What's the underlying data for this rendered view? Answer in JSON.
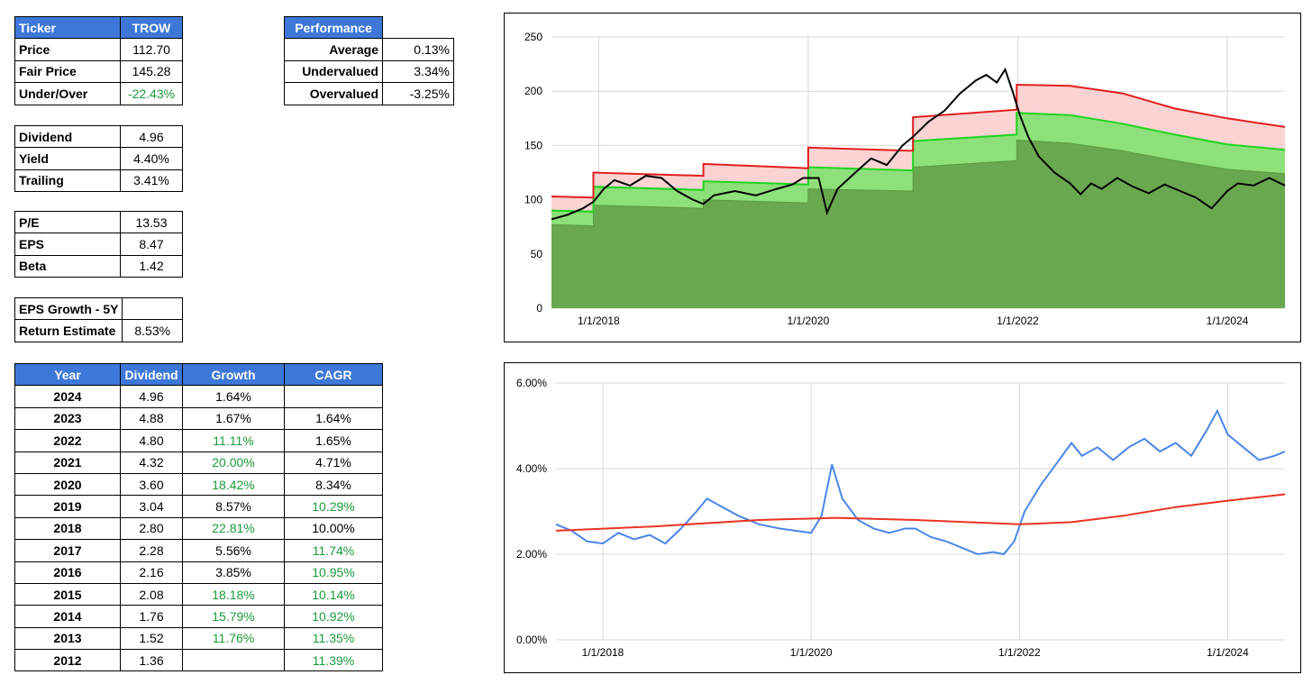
{
  "ticker_table": {
    "rows": [
      {
        "label": "Ticker",
        "value": "TROW"
      },
      {
        "label": "Price",
        "value": "112.70"
      },
      {
        "label": "Fair Price",
        "value": "145.28"
      },
      {
        "label": "Under/Over",
        "value": "-22.43%"
      }
    ]
  },
  "dividend_table": {
    "rows": [
      {
        "label": "Dividend",
        "value": "4.96"
      },
      {
        "label": "Yield",
        "value": "4.40%"
      },
      {
        "label": "Trailing",
        "value": "3.41%"
      }
    ]
  },
  "valuation_table": {
    "rows": [
      {
        "label": "P/E",
        "value": "13.53"
      },
      {
        "label": "EPS",
        "value": "8.47"
      },
      {
        "label": "Beta",
        "value": "1.42"
      }
    ]
  },
  "growth_table": {
    "rows": [
      {
        "label": "EPS Growth - 5Y",
        "value": ""
      },
      {
        "label": "Return Estimate",
        "value": "8.53%"
      }
    ]
  },
  "performance_table": {
    "header": "Performance",
    "rows": [
      {
        "label": "Average",
        "value": "0.13%"
      },
      {
        "label": "Undervalued",
        "value": "3.34%"
      },
      {
        "label": "Overvalued",
        "value": "-3.25%"
      }
    ]
  },
  "history_table": {
    "headers": [
      "Year",
      "Dividend",
      "Growth",
      "CAGR"
    ],
    "rows": [
      {
        "year": "2024",
        "dividend": "4.96",
        "growth": "1.64%",
        "cagr": ""
      },
      {
        "year": "2023",
        "dividend": "4.88",
        "growth": "1.67%",
        "cagr": "1.64%"
      },
      {
        "year": "2022",
        "dividend": "4.80",
        "growth": "11.11%",
        "cagr": "1.65%"
      },
      {
        "year": "2021",
        "dividend": "4.32",
        "growth": "20.00%",
        "cagr": "4.71%"
      },
      {
        "year": "2020",
        "dividend": "3.60",
        "growth": "18.42%",
        "cagr": "8.34%"
      },
      {
        "year": "2019",
        "dividend": "3.04",
        "growth": "8.57%",
        "cagr": "10.29%"
      },
      {
        "year": "2018",
        "dividend": "2.80",
        "growth": "22.81%",
        "cagr": "10.00%"
      },
      {
        "year": "2017",
        "dividend": "2.28",
        "growth": "5.56%",
        "cagr": "11.74%"
      },
      {
        "year": "2016",
        "dividend": "2.16",
        "growth": "3.85%",
        "cagr": "10.95%"
      },
      {
        "year": "2015",
        "dividend": "2.08",
        "growth": "18.18%",
        "cagr": "10.14%"
      },
      {
        "year": "2014",
        "dividend": "1.76",
        "growth": "15.79%",
        "cagr": "10.92%"
      },
      {
        "year": "2013",
        "dividend": "1.52",
        "growth": "11.76%",
        "cagr": "11.35%"
      },
      {
        "year": "2012",
        "dividend": "1.36",
        "growth": "",
        "cagr": "11.39%"
      }
    ]
  },
  "chart_data": [
    {
      "type": "area",
      "x_ticks": [
        "1/1/2018",
        "1/1/2020",
        "1/1/2022",
        "1/1/2024"
      ],
      "x_range": [
        "2017-07",
        "2024-07"
      ],
      "ylim": [
        0,
        250
      ],
      "y_ticks": [
        "0",
        "50",
        "100",
        "150",
        "200",
        "250"
      ],
      "grid": true,
      "series": [
        {
          "values": [
            [
              2017.55,
              103
            ],
            [
              2017.95,
              102
            ],
            [
              2017.95,
              125
            ],
            [
              2019.0,
              122
            ],
            [
              2019.0,
              133
            ],
            [
              2020.0,
              129
            ],
            [
              2020.0,
              148
            ],
            [
              2021.0,
              145
            ],
            [
              2021.0,
              176
            ],
            [
              2021.99,
              183
            ],
            [
              2021.99,
              206
            ],
            [
              2022.5,
              205
            ],
            [
              2023.0,
              198
            ],
            [
              2023.5,
              184
            ],
            [
              2024.0,
              175
            ],
            [
              2024.55,
              167
            ]
          ]
        },
        {
          "values": [
            [
              2017.55,
              90
            ],
            [
              2017.95,
              89
            ],
            [
              2017.95,
              112
            ],
            [
              2019.0,
              109
            ],
            [
              2019.0,
              117
            ],
            [
              2020.0,
              114
            ],
            [
              2020.0,
              130
            ],
            [
              2021.0,
              127
            ],
            [
              2021.0,
              154
            ],
            [
              2021.99,
              160
            ],
            [
              2021.99,
              180
            ],
            [
              2022.5,
              178
            ],
            [
              2023.0,
              170
            ],
            [
              2023.5,
              160
            ],
            [
              2024.0,
              151
            ],
            [
              2024.55,
              146
            ]
          ]
        },
        {
          "values": [
            [
              2017.55,
              77
            ],
            [
              2017.95,
              76
            ],
            [
              2017.95,
              95
            ],
            [
              2019.0,
              92
            ],
            [
              2019.0,
              100
            ],
            [
              2020.0,
              97
            ],
            [
              2020.0,
              110
            ],
            [
              2021.0,
              108
            ],
            [
              2021.0,
              130
            ],
            [
              2021.99,
              136
            ],
            [
              2021.99,
              155
            ],
            [
              2022.5,
              152
            ],
            [
              2023.0,
              145
            ],
            [
              2023.5,
              136
            ],
            [
              2024.0,
              128
            ],
            [
              2024.55,
              124
            ]
          ]
        },
        {
          "values": [
            [
              2017.55,
              82
            ],
            [
              2017.7,
              86
            ],
            [
              2017.85,
              92
            ],
            [
              2017.95,
              98
            ],
            [
              2018.05,
              110
            ],
            [
              2018.15,
              118
            ],
            [
              2018.3,
              113
            ],
            [
              2018.45,
              122
            ],
            [
              2018.6,
              120
            ],
            [
              2018.75,
              108
            ],
            [
              2018.9,
              100
            ],
            [
              2019.0,
              96
            ],
            [
              2019.1,
              104
            ],
            [
              2019.3,
              108
            ],
            [
              2019.5,
              104
            ],
            [
              2019.7,
              110
            ],
            [
              2019.85,
              114
            ],
            [
              2019.95,
              120
            ],
            [
              2020.1,
              120
            ],
            [
              2020.18,
              88
            ],
            [
              2020.28,
              110
            ],
            [
              2020.45,
              125
            ],
            [
              2020.6,
              138
            ],
            [
              2020.75,
              132
            ],
            [
              2020.9,
              150
            ],
            [
              2021.0,
              158
            ],
            [
              2021.15,
              172
            ],
            [
              2021.3,
              182
            ],
            [
              2021.45,
              198
            ],
            [
              2021.6,
              210
            ],
            [
              2021.7,
              215
            ],
            [
              2021.8,
              208
            ],
            [
              2021.88,
              220
            ],
            [
              2021.95,
              200
            ],
            [
              2022.02,
              178
            ],
            [
              2022.1,
              158
            ],
            [
              2022.2,
              140
            ],
            [
              2022.35,
              125
            ],
            [
              2022.5,
              115
            ],
            [
              2022.6,
              105
            ],
            [
              2022.7,
              115
            ],
            [
              2022.8,
              110
            ],
            [
              2022.95,
              120
            ],
            [
              2023.1,
              112
            ],
            [
              2023.25,
              106
            ],
            [
              2023.4,
              114
            ],
            [
              2023.55,
              108
            ],
            [
              2023.7,
              102
            ],
            [
              2023.85,
              92
            ],
            [
              2024.0,
              108
            ],
            [
              2024.1,
              115
            ],
            [
              2024.25,
              113
            ],
            [
              2024.4,
              120
            ],
            [
              2024.55,
              113
            ]
          ]
        }
      ]
    },
    {
      "type": "line",
      "x_ticks": [
        "1/1/2018",
        "1/1/2020",
        "1/1/2022",
        "1/1/2024"
      ],
      "x_range": [
        "2017-07",
        "2024-07"
      ],
      "ylim": [
        0,
        6
      ],
      "y_ticks": [
        "0.00%",
        "2.00%",
        "4.00%",
        "6.00%"
      ],
      "grid": true,
      "series": [
        {
          "color": "#4a86e8",
          "values": [
            [
              2017.55,
              2.7
            ],
            [
              2017.7,
              2.55
            ],
            [
              2017.85,
              2.3
            ],
            [
              2018.0,
              2.25
            ],
            [
              2018.15,
              2.5
            ],
            [
              2018.3,
              2.35
            ],
            [
              2018.45,
              2.45
            ],
            [
              2018.6,
              2.25
            ],
            [
              2018.75,
              2.6
            ],
            [
              2018.9,
              3.0
            ],
            [
              2019.0,
              3.3
            ],
            [
              2019.15,
              3.1
            ],
            [
              2019.3,
              2.9
            ],
            [
              2019.5,
              2.7
            ],
            [
              2019.7,
              2.6
            ],
            [
              2019.85,
              2.55
            ],
            [
              2020.0,
              2.5
            ],
            [
              2020.1,
              2.9
            ],
            [
              2020.2,
              4.1
            ],
            [
              2020.3,
              3.3
            ],
            [
              2020.45,
              2.8
            ],
            [
              2020.6,
              2.6
            ],
            [
              2020.75,
              2.5
            ],
            [
              2020.9,
              2.6
            ],
            [
              2021.0,
              2.6
            ],
            [
              2021.15,
              2.4
            ],
            [
              2021.3,
              2.3
            ],
            [
              2021.45,
              2.15
            ],
            [
              2021.6,
              2.0
            ],
            [
              2021.75,
              2.05
            ],
            [
              2021.85,
              2.0
            ],
            [
              2021.95,
              2.3
            ],
            [
              2022.05,
              3.0
            ],
            [
              2022.2,
              3.6
            ],
            [
              2022.35,
              4.1
            ],
            [
              2022.5,
              4.6
            ],
            [
              2022.6,
              4.3
            ],
            [
              2022.75,
              4.5
            ],
            [
              2022.9,
              4.2
            ],
            [
              2023.05,
              4.5
            ],
            [
              2023.2,
              4.7
            ],
            [
              2023.35,
              4.4
            ],
            [
              2023.5,
              4.6
            ],
            [
              2023.65,
              4.3
            ],
            [
              2023.8,
              4.9
            ],
            [
              2023.9,
              5.35
            ],
            [
              2024.0,
              4.8
            ],
            [
              2024.15,
              4.5
            ],
            [
              2024.3,
              4.2
            ],
            [
              2024.45,
              4.3
            ],
            [
              2024.55,
              4.4
            ]
          ]
        },
        {
          "color": "#ea3323",
          "values": [
            [
              2017.55,
              2.55
            ],
            [
              2018.5,
              2.65
            ],
            [
              2019.5,
              2.8
            ],
            [
              2020.25,
              2.85
            ],
            [
              2021.0,
              2.8
            ],
            [
              2022.0,
              2.7
            ],
            [
              2022.5,
              2.75
            ],
            [
              2023.0,
              2.9
            ],
            [
              2023.5,
              3.1
            ],
            [
              2024.0,
              3.25
            ],
            [
              2024.55,
              3.4
            ]
          ]
        }
      ]
    }
  ]
}
